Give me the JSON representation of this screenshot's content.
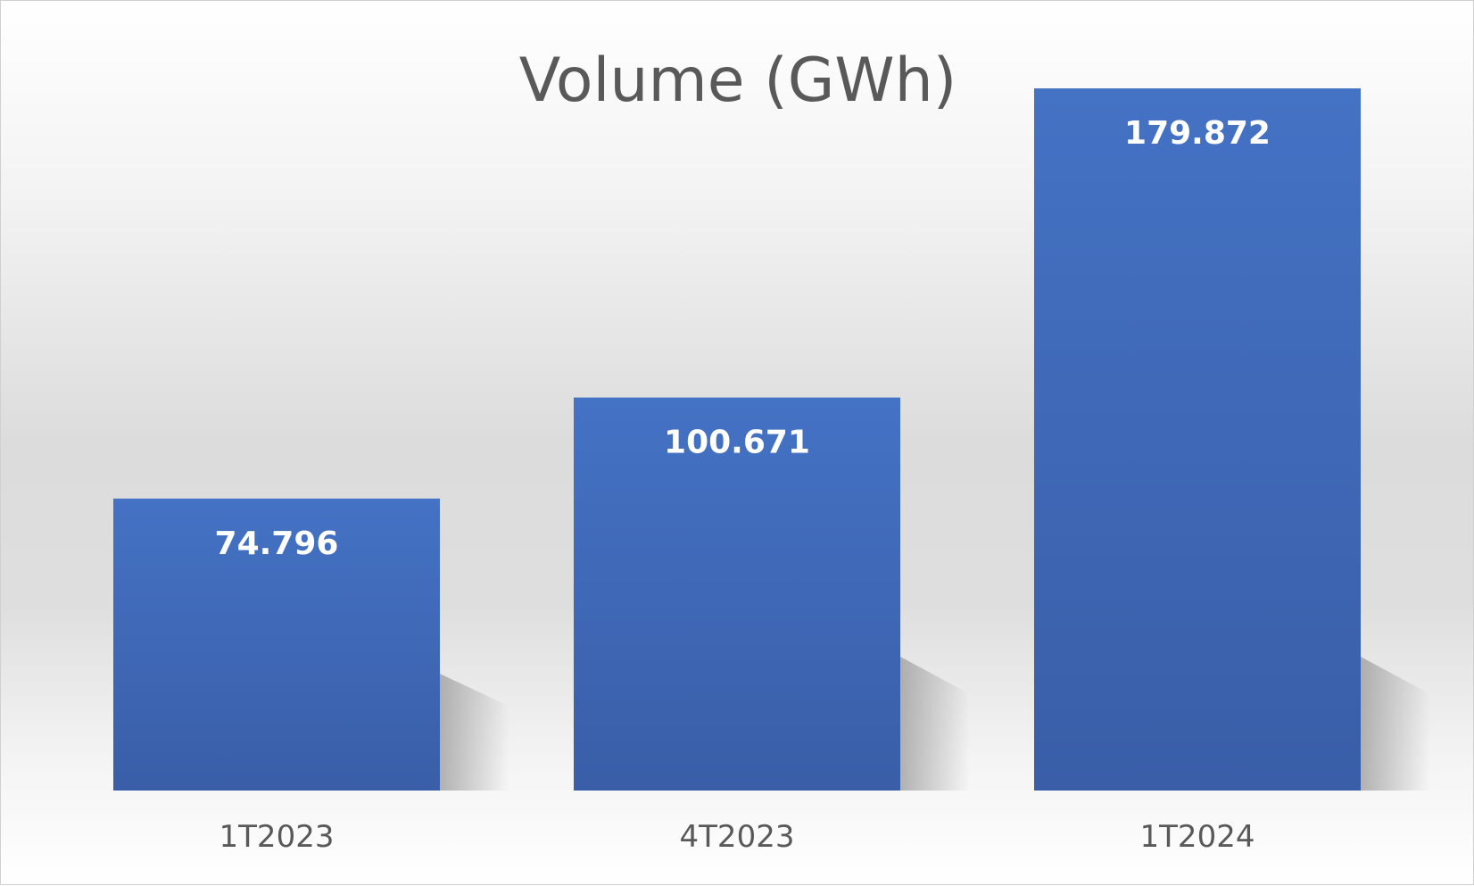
{
  "chart_data": {
    "type": "bar",
    "title": "Volume (GWh)",
    "xlabel": "",
    "ylabel": "",
    "categories": [
      "1T2023",
      "4T2023",
      "1T2024"
    ],
    "values": [
      74.796,
      100.671,
      179.872
    ],
    "data_labels": [
      "74.796",
      "100.671",
      "179.872"
    ],
    "ylim": [
      0,
      200
    ],
    "grid": false,
    "legend": "none",
    "bar_color_top": "#4472c4",
    "bar_color_bottom": "#3a5ea8",
    "title_color": "#595959",
    "label_color": "#ffffff"
  }
}
